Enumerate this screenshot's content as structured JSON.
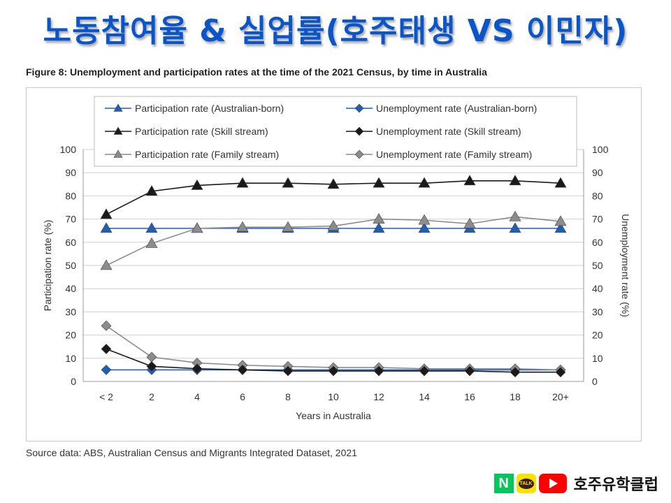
{
  "slide": {
    "title": "노동참여율 & 실업률(호주태생 VS 이민자)",
    "source": "Source data: ABS, Australian Census and Migrants Integrated Dataset, 2021",
    "brand": {
      "naver_letter": "N",
      "kakao_label": "TALK",
      "name": "호주유학클럽"
    }
  },
  "chart_data": {
    "type": "line",
    "title": "Figure 8: Unemployment and participation rates at the time of the 2021 Census, by time in Australia",
    "xlabel": "Years in Australia",
    "ylabel_left": "Participation rate (%)",
    "ylabel_right": "Unemployment rate (%)",
    "categories": [
      "< 2",
      "2",
      "4",
      "6",
      "8",
      "10",
      "12",
      "14",
      "16",
      "18",
      "20+"
    ],
    "ylim": [
      0,
      100
    ],
    "yticks": [
      0,
      10,
      20,
      30,
      40,
      50,
      60,
      70,
      80,
      90,
      100
    ],
    "grid": "horizontal",
    "legend_position": "top",
    "series": [
      {
        "name": "Participation rate (Australian-born)",
        "axis": "left",
        "marker": "triangle",
        "color": "#1f5fb4",
        "values": [
          66,
          66,
          66,
          66,
          66,
          66,
          66,
          66,
          66,
          66,
          66
        ]
      },
      {
        "name": "Unemployment rate (Australian-born)",
        "axis": "right",
        "marker": "diamond",
        "color": "#1f5fb4",
        "values": [
          5,
          5,
          5,
          5,
          5,
          5,
          5,
          5,
          5,
          5,
          5
        ]
      },
      {
        "name": "Participation rate (Skill stream)",
        "axis": "left",
        "marker": "triangle",
        "color": "#1a1a1a",
        "values": [
          72,
          82,
          84.5,
          85.5,
          85.5,
          85,
          85.5,
          85.5,
          86.5,
          86.5,
          85.5
        ]
      },
      {
        "name": "Unemployment rate (Skill stream)",
        "axis": "right",
        "marker": "diamond",
        "color": "#1a1a1a",
        "values": [
          14,
          6.5,
          5.5,
          5,
          4.5,
          4.5,
          4.5,
          4.5,
          4.5,
          4,
          4
        ]
      },
      {
        "name": "Participation rate (Family stream)",
        "axis": "left",
        "marker": "triangle",
        "color": "#8c8c8c",
        "values": [
          50,
          59.5,
          66,
          66.5,
          66.5,
          67,
          70,
          69.5,
          68,
          71,
          69
        ]
      },
      {
        "name": "Unemployment rate (Family stream)",
        "axis": "right",
        "marker": "diamond",
        "color": "#8c8c8c",
        "values": [
          24,
          10.5,
          8,
          7,
          6.5,
          6,
          6,
          5.5,
          5.5,
          5.5,
          5
        ]
      }
    ]
  }
}
